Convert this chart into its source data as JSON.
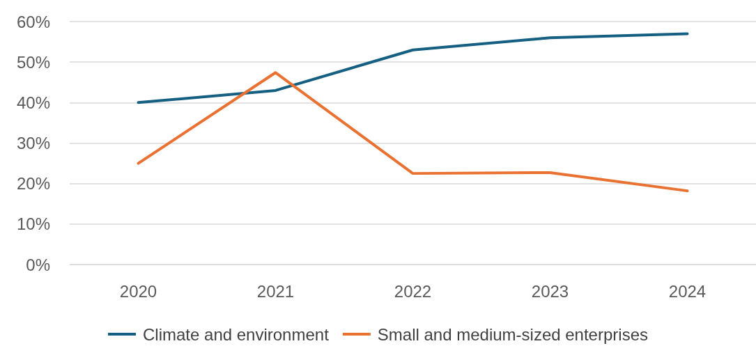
{
  "chart_data": {
    "type": "line",
    "categories": [
      "2020",
      "2021",
      "2022",
      "2023",
      "2024"
    ],
    "series": [
      {
        "name": "Climate and environment",
        "color": "#156082",
        "values": [
          40,
          43,
          53,
          56,
          57
        ]
      },
      {
        "name": "Small and medium-sized enterprises",
        "color": "#e97132",
        "values": [
          25,
          47.4,
          22.5,
          22.7,
          18.2
        ]
      }
    ],
    "ylim": [
      0,
      60
    ],
    "yticks": [
      {
        "value": 0,
        "label": "0%"
      },
      {
        "value": 10,
        "label": "10%"
      },
      {
        "value": 20,
        "label": "20%"
      },
      {
        "value": 30,
        "label": "30%"
      },
      {
        "value": 40,
        "label": "40%"
      },
      {
        "value": 50,
        "label": "50%"
      },
      {
        "value": 60,
        "label": "60%"
      }
    ],
    "grid": "y",
    "legend": "bottom",
    "marker": "none",
    "line_style": "solid"
  }
}
